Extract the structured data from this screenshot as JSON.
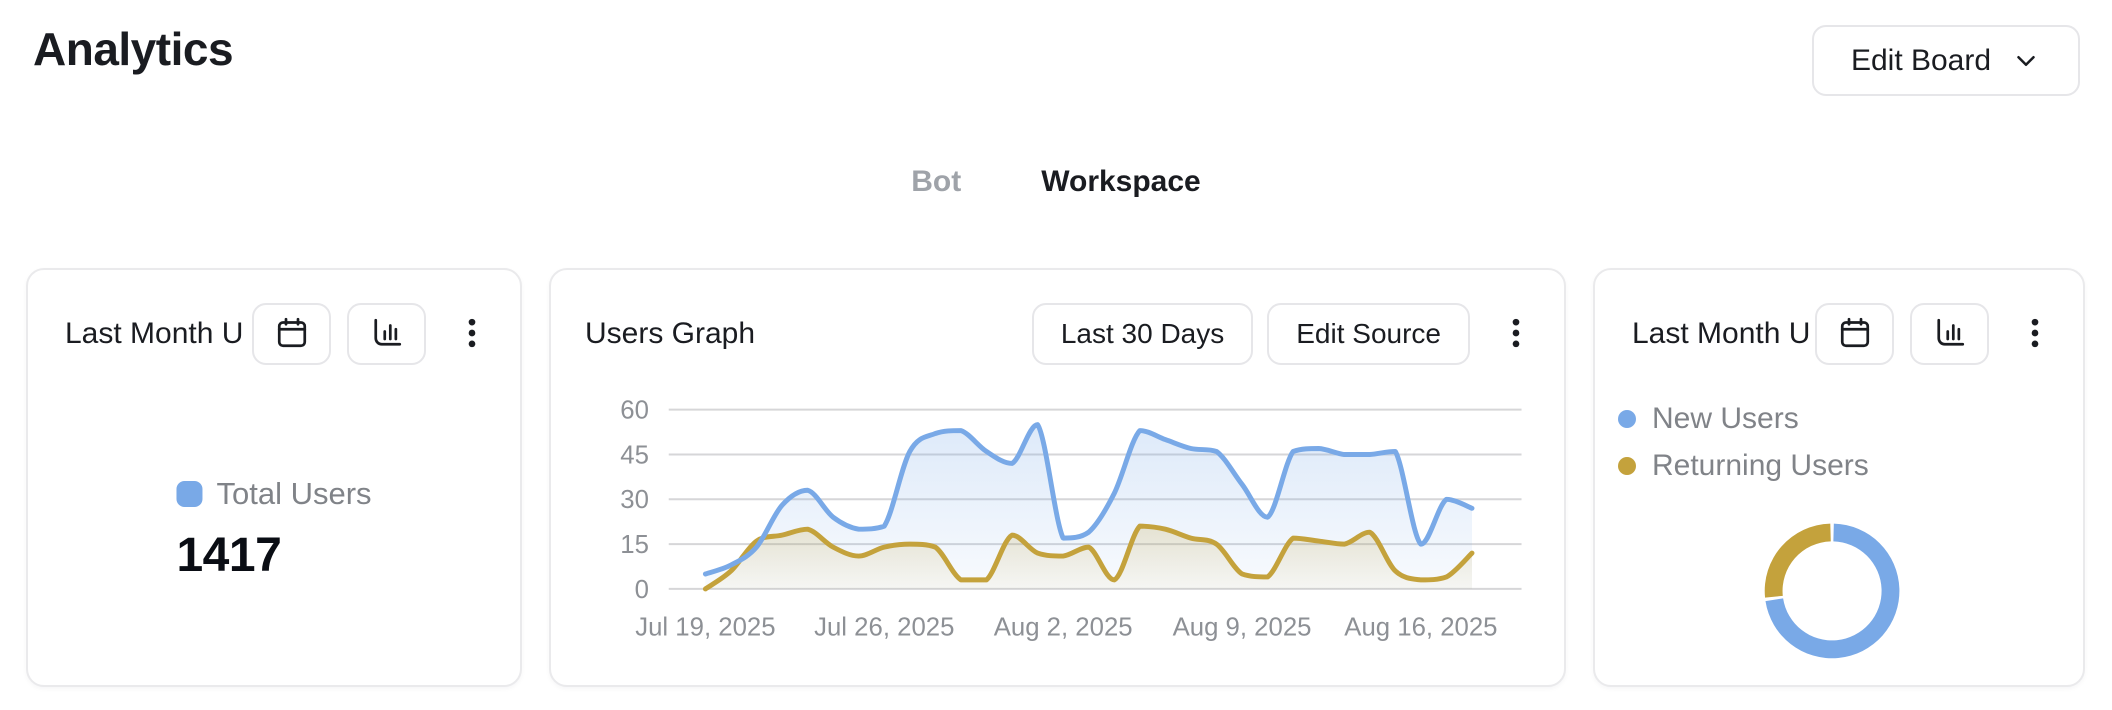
{
  "page": {
    "title": "Analytics"
  },
  "header": {
    "edit_board_button": "Edit Board"
  },
  "tabs": {
    "bot": "Bot",
    "workspace": "Workspace",
    "active_tab": "Workspace"
  },
  "colors": {
    "accent_blue": "#79A9E7",
    "accent_olive": "#C4A23C",
    "text_dark": "#1A1C21",
    "text_gray": "#808388",
    "text_axis": "#8D9095",
    "grid_line": "#D6D6D8",
    "card_border": "#EAEAEC",
    "button_border": "#E6E6E9",
    "tab_inactive": "#9FA3A9",
    "value_color": "#0A0D14"
  },
  "cards": {
    "total_users": {
      "title": "Last Month Users",
      "legend_label": "Total Users",
      "value": "1417"
    },
    "users_graph": {
      "title": "Users Graph",
      "range_button": "Last 30 Days",
      "source_button": "Edit Source"
    },
    "user_split": {
      "title": "Last Month Users"
    }
  },
  "chart_data": [
    {
      "type": "area",
      "title": "Users Graph",
      "x_start": "Jul 19, 2025",
      "x_end": "Aug 18, 2025",
      "x_tick_labels": [
        "Jul 19, 2025",
        "Jul 26, 2025",
        "Aug 2, 2025",
        "Aug 9, 2025",
        "Aug 16, 2025"
      ],
      "x_tick_indices": [
        0,
        7,
        14,
        21,
        28
      ],
      "yticks": [
        0,
        15,
        30,
        45,
        60
      ],
      "ylim": [
        0,
        60
      ],
      "grid": true,
      "smooth": true,
      "legend_position": "none",
      "series": [
        {
          "name": "New Users",
          "color": "#79A9E7",
          "values": [
            5,
            8,
            14,
            28,
            33,
            24,
            20,
            21,
            46,
            52,
            53,
            46,
            42,
            55,
            17,
            19,
            32,
            53,
            50,
            47,
            46,
            35,
            24,
            46,
            47,
            45,
            45,
            46,
            15,
            30,
            27
          ]
        },
        {
          "name": "Returning Users",
          "color": "#C4A23C",
          "values": [
            0,
            6,
            16,
            18,
            20,
            14,
            11,
            14,
            15,
            14,
            3,
            3,
            18,
            12,
            11,
            14,
            3,
            21,
            20,
            17,
            15,
            5,
            4,
            17,
            16,
            15,
            19,
            6,
            3,
            4,
            12
          ]
        }
      ]
    },
    {
      "type": "pie",
      "donut": true,
      "labels": [
        "New Users",
        "Returning Users"
      ],
      "values": [
        73,
        27
      ],
      "colors": [
        "#79A9E7",
        "#C4A23C"
      ],
      "legend_position": "top-left"
    }
  ]
}
